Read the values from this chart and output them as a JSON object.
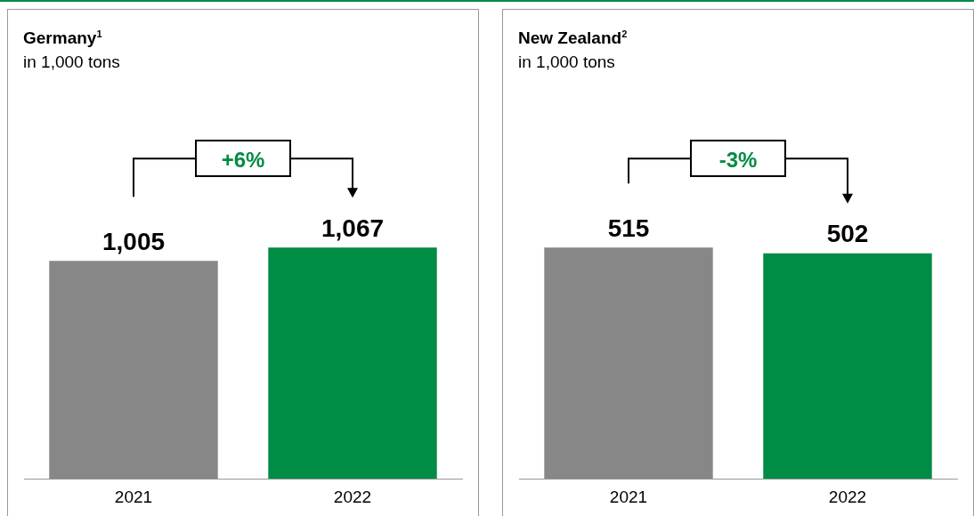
{
  "chart_data": [
    {
      "type": "bar",
      "title": "Germany$^{1}$",
      "subtitle": "in 1,000 tons",
      "categories": [
        "2021",
        "2022"
      ],
      "values": [
        1005,
        1067
      ],
      "colors": [
        "#878787",
        "#008c45"
      ],
      "value_labels": [
        "1,005",
        "1,067"
      ],
      "annotations": [
        "+6%"
      ],
      "tick_labels": "x"
    },
    {
      "type": "bar",
      "title": "New Zealand$^{2}$",
      "subtitle": "in 1,000 tons",
      "categories": [
        "2021",
        "2022"
      ],
      "values": [
        515,
        502
      ],
      "colors": [
        "#878787",
        "#008c45"
      ],
      "value_labels": [
        "515",
        "502"
      ],
      "annotations": [
        "-3%"
      ],
      "tick_labels": "x"
    }
  ]
}
